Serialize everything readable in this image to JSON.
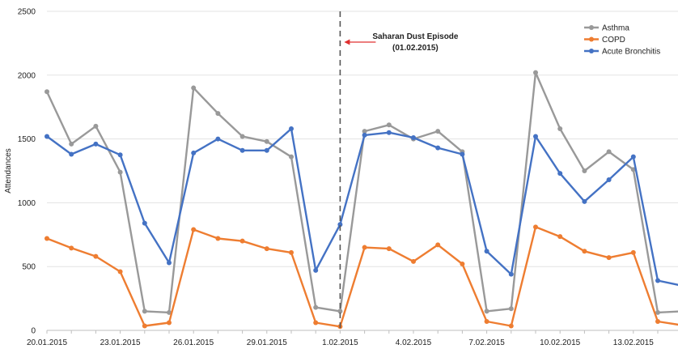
{
  "chart_data": {
    "type": "line",
    "ylabel": "Attendances",
    "ylim": [
      0,
      2500
    ],
    "yticks": [
      0,
      500,
      1000,
      1500,
      2000,
      2500
    ],
    "grid": "horizontal",
    "legend_placement": "top-right",
    "x": [
      "20.01.2015",
      "21.01.2015",
      "22.01.2015",
      "23.01.2015",
      "24.01.2015",
      "25.01.2015",
      "26.01.2015",
      "27.01.2015",
      "28.01.2015",
      "29.01.2015",
      "30.01.2015",
      "31.01.2015",
      "1.02.2015",
      "2.02.2015",
      "3.02.2015",
      "4.02.2015",
      "5.02.2015",
      "6.02.2015",
      "7.02.2015",
      "8.02.2015",
      "9.02.2015",
      "10.02.2015",
      "11.02.2015",
      "12.02.2015",
      "13.02.2015",
      "14.02.2015",
      "15.02.2015"
    ],
    "xtick_labels": [
      "20.01.2015",
      "23.01.2015",
      "26.01.2015",
      "29.01.2015",
      "1.02.2015",
      "4.02.2015",
      "7.02.2015",
      "10.02.2015",
      "13.02.2015"
    ],
    "series": [
      {
        "name": "Asthma",
        "color": "#999999",
        "values": [
          1870,
          1460,
          1600,
          1240,
          150,
          140,
          1900,
          1700,
          1520,
          1480,
          1360,
          180,
          150,
          1560,
          1610,
          1500,
          1560,
          1400,
          150,
          170,
          2020,
          1580,
          1250,
          1400,
          1260,
          140,
          150
        ]
      },
      {
        "name": "COPD",
        "color": "#ee7d31",
        "values": [
          720,
          645,
          580,
          460,
          35,
          60,
          790,
          720,
          700,
          640,
          610,
          60,
          30,
          650,
          640,
          540,
          670,
          520,
          70,
          35,
          810,
          735,
          620,
          570,
          610,
          70,
          40
        ]
      },
      {
        "name": "Acute Bronchitis",
        "color": "#4472c4",
        "values": [
          1520,
          1380,
          1460,
          1375,
          840,
          530,
          1390,
          1500,
          1410,
          1410,
          1580,
          470,
          830,
          1530,
          1550,
          1510,
          1430,
          1380,
          620,
          440,
          1520,
          1230,
          1010,
          1180,
          1360,
          390,
          350
        ]
      }
    ],
    "annotation": {
      "title": "Saharan Dust Episode",
      "date": "(01.02.2015)",
      "x": "1.02.2015"
    }
  }
}
